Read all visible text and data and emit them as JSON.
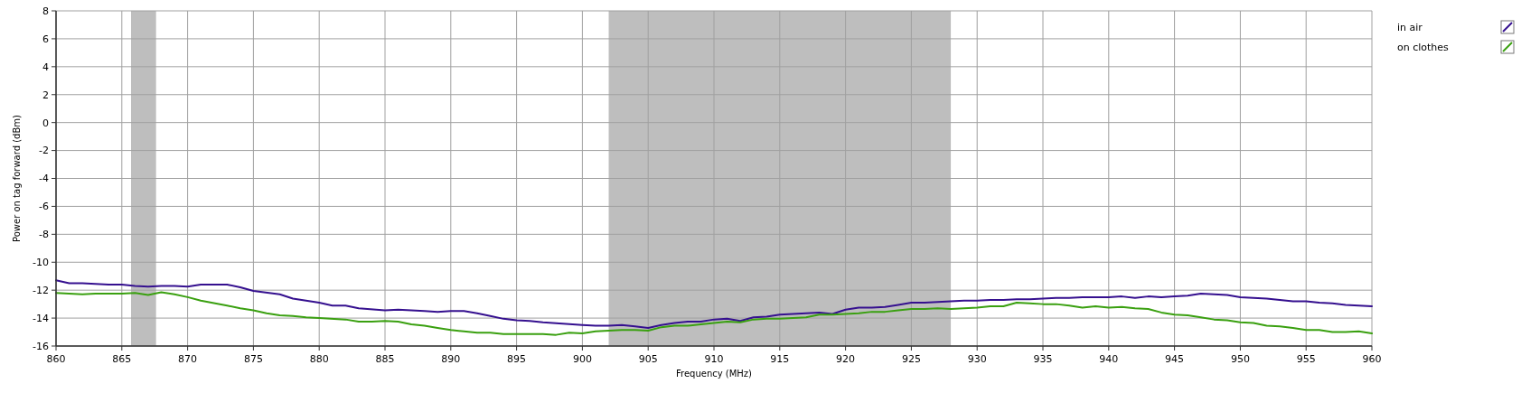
{
  "chart_data": {
    "type": "line",
    "xlabel": "Frequency (MHz)",
    "ylabel": "Power on tag forward (dBm)",
    "xlim": [
      860,
      960
    ],
    "xticks": [
      860,
      865,
      870,
      875,
      880,
      885,
      890,
      895,
      900,
      905,
      910,
      915,
      920,
      925,
      930,
      935,
      940,
      945,
      950,
      955,
      960
    ],
    "ylim": [
      -16,
      8
    ],
    "yticks": [
      -16,
      -14,
      -12,
      -10,
      -8,
      -6,
      -4,
      -2,
      0,
      2,
      4,
      6,
      8
    ],
    "grid": true,
    "legend": "top right",
    "bands": [
      {
        "axis": "x",
        "from": 865.7,
        "to": 867.6,
        "color": "#bebebe"
      },
      {
        "axis": "x",
        "from": 902,
        "to": 928,
        "color": "#bebebe"
      }
    ],
    "series": [
      {
        "name": "in air",
        "color": "#35108f",
        "x": [
          860,
          861,
          862,
          864,
          865,
          866,
          867,
          868,
          869,
          870,
          871,
          873,
          874,
          875,
          877,
          878,
          880,
          881,
          882,
          883,
          885,
          886,
          888,
          889,
          890,
          891,
          892,
          893,
          894,
          895,
          896,
          897,
          900,
          901,
          902,
          903,
          904,
          905,
          906,
          907,
          908,
          909,
          910,
          911,
          912,
          913,
          914,
          915,
          916,
          917,
          918,
          919,
          920,
          921,
          922,
          923,
          924,
          925,
          926,
          927,
          928,
          929,
          930,
          931,
          932,
          933,
          934,
          935,
          936,
          937,
          938,
          940,
          941,
          942,
          943,
          944,
          945,
          946,
          947,
          948,
          949,
          950,
          952,
          954,
          955,
          956,
          957,
          958,
          959,
          960
        ],
        "values": [
          -11.3,
          -11.5,
          -11.5,
          -11.6,
          -11.6,
          -11.7,
          -11.75,
          -11.7,
          -11.7,
          -11.75,
          -11.6,
          -11.6,
          -11.8,
          -12.05,
          -12.3,
          -12.6,
          -12.9,
          -13.1,
          -13.1,
          -13.3,
          -13.45,
          -13.4,
          -13.5,
          -13.55,
          -13.5,
          -13.5,
          -13.65,
          -13.85,
          -14.05,
          -14.15,
          -14.2,
          -14.3,
          -14.5,
          -14.55,
          -14.55,
          -14.5,
          -14.6,
          -14.7,
          -14.5,
          -14.35,
          -14.25,
          -14.25,
          -14.1,
          -14.05,
          -14.2,
          -13.95,
          -13.9,
          -13.75,
          -13.7,
          -13.65,
          -13.6,
          -13.7,
          -13.4,
          -13.25,
          -13.25,
          -13.2,
          -13.05,
          -12.9,
          -12.9,
          -12.85,
          -12.8,
          -12.75,
          -12.75,
          -12.7,
          -12.7,
          -12.65,
          -12.65,
          -12.6,
          -12.55,
          -12.55,
          -12.5,
          -12.5,
          -12.45,
          -12.55,
          -12.45,
          -12.5,
          -12.45,
          -12.4,
          -12.25,
          -12.3,
          -12.35,
          -12.5,
          -12.6,
          -12.8,
          -12.8,
          -12.9,
          -12.95,
          -13.05,
          -13.1,
          -13.15
        ]
      },
      {
        "name": "on clothes",
        "color": "#3aa010",
        "x": [
          860,
          862,
          863,
          865,
          866,
          867,
          868,
          869,
          870,
          871,
          873,
          874,
          875,
          876,
          877,
          878,
          879,
          880,
          882,
          883,
          884,
          885,
          886,
          887,
          888,
          889,
          890,
          891,
          892,
          893,
          894,
          897,
          898,
          899,
          900,
          901,
          902,
          903,
          904,
          905,
          906,
          907,
          908,
          909,
          910,
          911,
          912,
          913,
          914,
          915,
          916,
          917,
          918,
          919,
          920,
          921,
          922,
          923,
          924,
          925,
          926,
          927,
          928,
          929,
          930,
          931,
          932,
          933,
          934,
          935,
          936,
          937,
          938,
          939,
          940,
          941,
          942,
          943,
          944,
          945,
          946,
          947,
          948,
          949,
          950,
          951,
          952,
          953,
          954,
          955,
          956,
          957,
          958,
          959,
          960
        ],
        "values": [
          -12.2,
          -12.3,
          -12.25,
          -12.25,
          -12.2,
          -12.35,
          -12.15,
          -12.3,
          -12.5,
          -12.75,
          -13.1,
          -13.3,
          -13.45,
          -13.65,
          -13.8,
          -13.85,
          -13.95,
          -14,
          -14.1,
          -14.25,
          -14.25,
          -14.2,
          -14.25,
          -14.45,
          -14.55,
          -14.7,
          -14.85,
          -14.95,
          -15.05,
          -15.05,
          -15.15,
          -15.15,
          -15.2,
          -15.05,
          -15.1,
          -14.95,
          -14.9,
          -14.85,
          -14.85,
          -14.9,
          -14.65,
          -14.55,
          -14.55,
          -14.45,
          -14.35,
          -14.25,
          -14.3,
          -14.1,
          -14.05,
          -14.05,
          -14,
          -13.95,
          -13.75,
          -13.75,
          -13.7,
          -13.65,
          -13.55,
          -13.55,
          -13.45,
          -13.35,
          -13.35,
          -13.3,
          -13.35,
          -13.3,
          -13.25,
          -13.15,
          -13.15,
          -12.9,
          -12.95,
          -13,
          -13,
          -13.1,
          -13.25,
          -13.15,
          -13.25,
          -13.2,
          -13.3,
          -13.35,
          -13.6,
          -13.75,
          -13.8,
          -13.95,
          -14.1,
          -14.15,
          -14.3,
          -14.35,
          -14.55,
          -14.6,
          -14.7,
          -14.85,
          -14.85,
          -15,
          -15,
          -14.95,
          -15.1
        ]
      }
    ]
  }
}
